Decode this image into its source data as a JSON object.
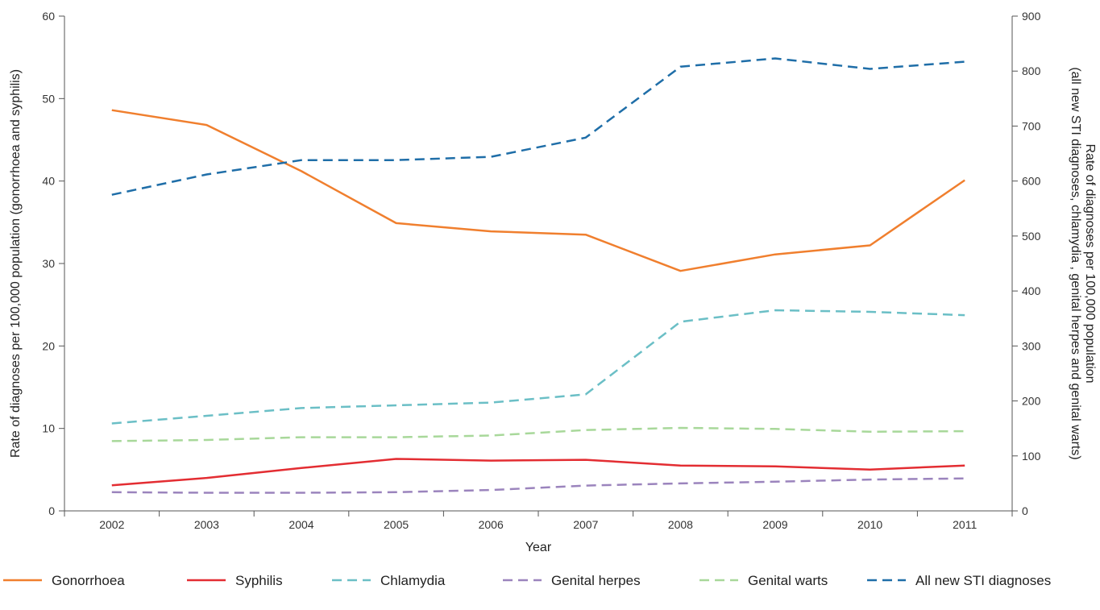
{
  "chart_data": {
    "type": "line",
    "categories": [
      "2002",
      "2003",
      "2004",
      "2005",
      "2006",
      "2007",
      "2008",
      "2009",
      "2010",
      "2011"
    ],
    "xlabel": "Year",
    "ylabel_left": "Rate of diagnoses per 100,000 population (gonorrhoea and syphilis)",
    "ylabel_right_line1": "Rate of diagnoses per 100,000 population",
    "ylabel_right_line2": "(all new STI diagnoses, chlamydia , genital herpes and genital warts)",
    "ylim_left": [
      0,
      60
    ],
    "ylim_right": [
      0,
      900
    ],
    "yticks_left": [
      "0",
      "10",
      "20",
      "30",
      "40",
      "50",
      "60"
    ],
    "yticks_right": [
      "0",
      "100",
      "200",
      "300",
      "400",
      "500",
      "600",
      "700",
      "800",
      "900"
    ],
    "grid": false,
    "legend_position": "bottom",
    "series": [
      {
        "name": "Gonorrhoea",
        "axis": "left",
        "color": "#f07f2e",
        "dashed": false,
        "values": [
          48.6,
          46.8,
          41.2,
          34.9,
          33.9,
          33.5,
          29.1,
          31.1,
          32.2,
          40.1
        ]
      },
      {
        "name": "Syphilis",
        "axis": "left",
        "color": "#e32d32",
        "dashed": false,
        "values": [
          3.1,
          4.0,
          5.2,
          6.3,
          6.1,
          6.2,
          5.5,
          5.4,
          5.0,
          5.5
        ]
      },
      {
        "name": "Chlamydia",
        "axis": "right",
        "color": "#6bbfc6",
        "dashed": true,
        "values": [
          159,
          173,
          187,
          192,
          197,
          212,
          344,
          365,
          362,
          356
        ]
      },
      {
        "name": "Genital herpes",
        "axis": "right",
        "color": "#9b84bd",
        "dashed": true,
        "values": [
          34,
          33,
          33,
          34,
          38,
          46,
          50,
          53,
          57,
          59
        ]
      },
      {
        "name": "Genital warts",
        "axis": "right",
        "color": "#a8d89a",
        "dashed": true,
        "values": [
          127,
          129,
          134,
          134,
          137,
          147,
          151,
          149,
          144,
          145
        ]
      },
      {
        "name": "All new STI diagnoses",
        "axis": "right",
        "color": "#1f6ea8",
        "dashed": true,
        "values": [
          575,
          612,
          638,
          638,
          644,
          679,
          808,
          823,
          804,
          817
        ]
      }
    ]
  }
}
